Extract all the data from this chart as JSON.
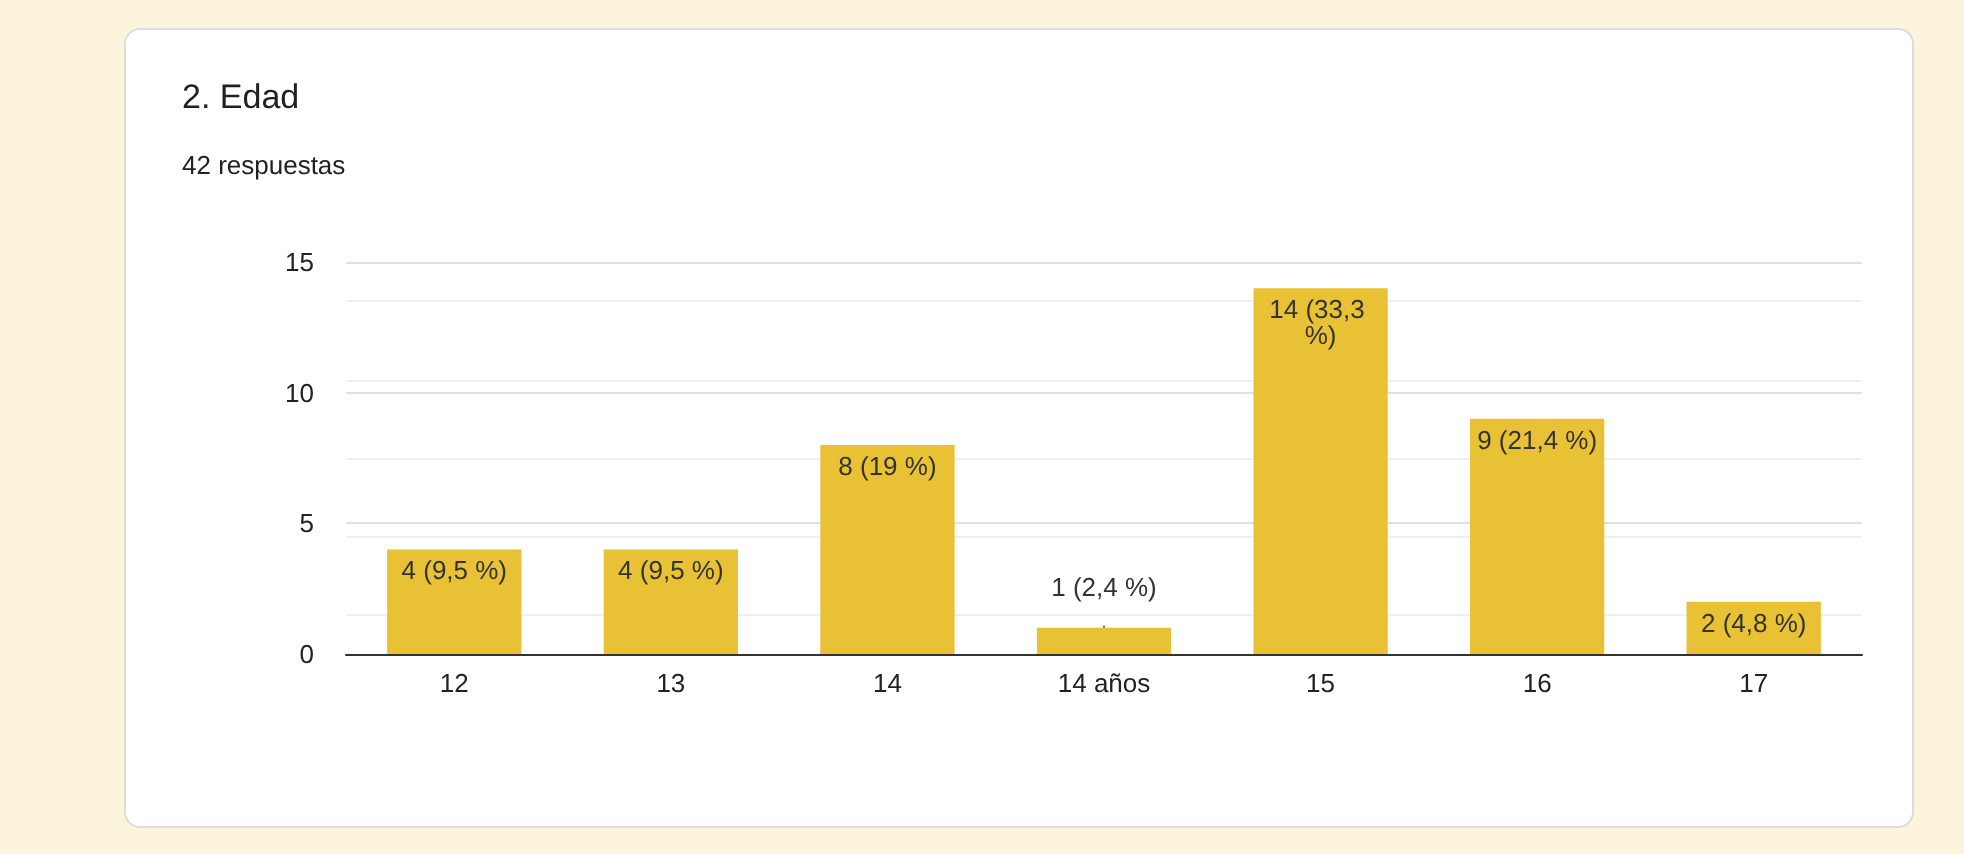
{
  "chart_data": {
    "type": "bar",
    "title": "2. Edad",
    "subtitle": "42 respuestas",
    "categories": [
      "12",
      "13",
      "14",
      "14 años",
      "15",
      "16",
      "17"
    ],
    "values": [
      4,
      4,
      8,
      1,
      14,
      9,
      2
    ],
    "value_labels": [
      "4 (9,5 %)",
      "4 (9,5 %)",
      "8 (19 %)",
      "1 (2,4 %)",
      "14 (33,3 %)",
      "9 (21,4 %)",
      "2 (4,8 %)"
    ],
    "color": "#e8c135",
    "ylim": [
      0,
      15
    ],
    "yticks": [
      0,
      5,
      10,
      15
    ],
    "grid": "y"
  }
}
